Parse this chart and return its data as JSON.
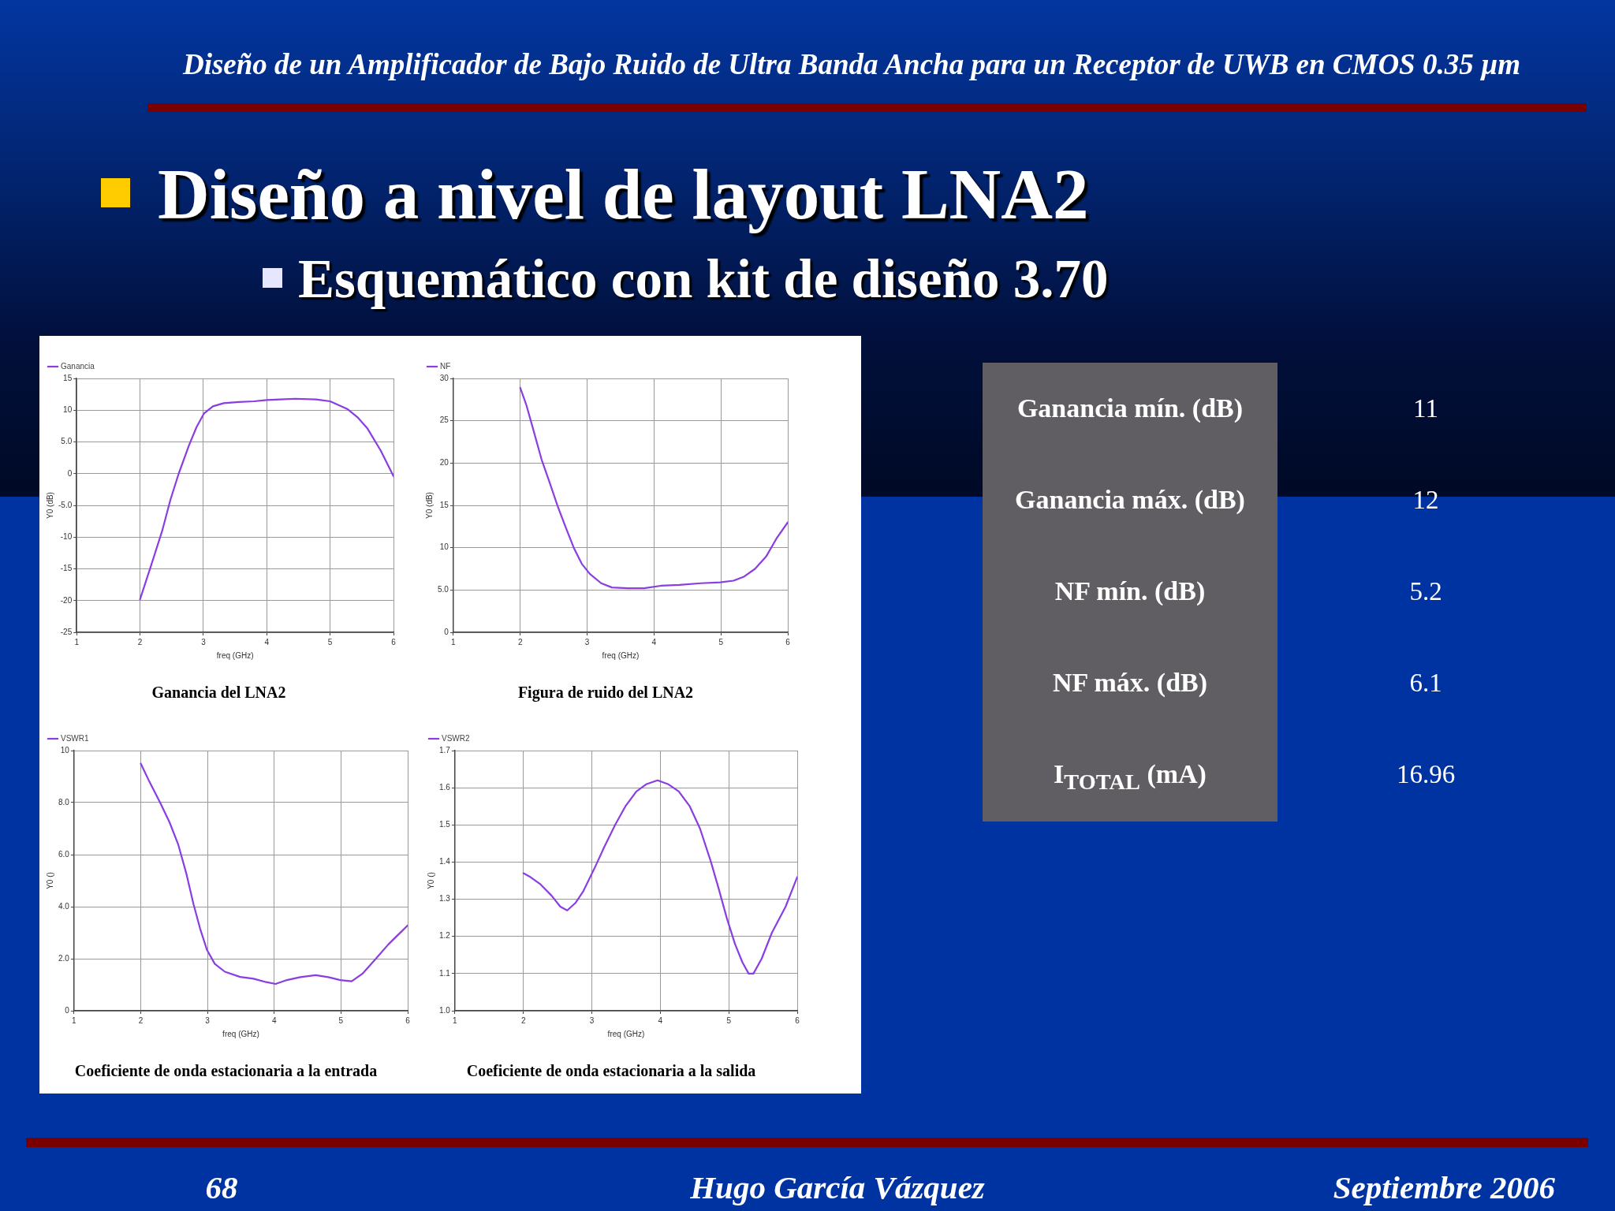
{
  "chart_data": [
    {
      "type": "other",
      "title": "Diseño a nivel de layout LNA2",
      "subtitle": "Esquemático con kit de diseño 3.70",
      "annotations": [
        "Diseño de un Amplificador de Bajo Ruido de Ultra Banda Ancha para un Receptor de UWB en CMOS 0.35 µm",
        "68",
        "Hugo García Vázquez",
        "Septiembre 2006"
      ]
    },
    {
      "type": "line",
      "title": "Ganancia del LNA2",
      "xlabel": "freq (GHz)",
      "ylabel": "Y0 (dB)",
      "x": [
        2,
        2.18,
        2.35,
        2.48,
        2.61,
        2.77,
        2.89,
        3.01,
        3.15,
        3.32,
        3.56,
        3.8,
        4,
        4.21,
        4.45,
        4.78,
        5,
        5.27,
        5.43,
        5.59,
        5.8,
        6
      ],
      "series": [
        {
          "name": "Ganancia",
          "color": "#8a3de0",
          "values": [
            -19.8,
            -14.3,
            -9,
            -4.1,
            0,
            4.4,
            7.3,
            9.5,
            10.6,
            11.1,
            11.3,
            11.4,
            11.6,
            11.7,
            11.8,
            11.7,
            11.4,
            10.2,
            8.9,
            7.1,
            3.6,
            -0.4
          ]
        }
      ],
      "xlim": [
        1,
        6
      ],
      "xticks": [
        1,
        2,
        3,
        4,
        5,
        6
      ],
      "ylim": [
        -25,
        15
      ],
      "yticks": [
        -25,
        -20,
        -15,
        -10,
        {
          "value": -5,
          "label": "-5.0"
        },
        0,
        {
          "value": 5,
          "label": "5.0"
        },
        10,
        15
      ],
      "grid": true,
      "legend": "top left",
      "marker": "none"
    },
    {
      "type": "line",
      "title": "Figura de ruido del LNA2",
      "xlabel": "freq (GHz)",
      "ylabel": "Y0 (dB)",
      "x": [
        2,
        2.09,
        2.19,
        2.32,
        2.44,
        2.56,
        2.68,
        2.8,
        2.92,
        3.04,
        3.21,
        3.37,
        3.61,
        3.85,
        4.1,
        4.38,
        4.7,
        4.99,
        5.19,
        5.35,
        5.51,
        5.68,
        5.84,
        6
      ],
      "series": [
        {
          "name": "NF",
          "color": "#8a3de0",
          "values": [
            28.9,
            26.9,
            24.1,
            20.4,
            17.7,
            14.9,
            12.4,
            10,
            8.1,
            6.9,
            5.8,
            5.3,
            5.2,
            5.2,
            5.5,
            5.6,
            5.8,
            5.9,
            6.1,
            6.6,
            7.5,
            9,
            11.2,
            13
          ]
        }
      ],
      "xlim": [
        1,
        6
      ],
      "xticks": [
        1,
        2,
        3,
        4,
        5,
        6
      ],
      "ylim": [
        0,
        30
      ],
      "yticks": [
        0,
        {
          "value": 5,
          "label": "5.0"
        },
        10,
        15,
        20,
        25,
        30
      ],
      "grid": true,
      "legend": "top left",
      "marker": "none"
    },
    {
      "type": "line",
      "title": "Coeficiente de onda estacionaria a la entrada",
      "xlabel": "freq (GHz)",
      "ylabel": "Y0 ()",
      "x": [
        2,
        2.13,
        2.29,
        2.43,
        2.56,
        2.68,
        2.79,
        2.89,
        2.99,
        3.11,
        3.26,
        3.49,
        3.69,
        3.88,
        4.02,
        4.19,
        4.39,
        4.62,
        4.81,
        4.99,
        5.16,
        5.32,
        5.51,
        5.71,
        6
      ],
      "series": [
        {
          "name": "VSWR1",
          "color": "#8a3de0",
          "values": [
            9.5,
            8.8,
            8,
            7.25,
            6.4,
            5.3,
            4.1,
            3.15,
            2.35,
            1.8,
            1.5,
            1.3,
            1.23,
            1.1,
            1.03,
            1.18,
            1.29,
            1.37,
            1.29,
            1.18,
            1.13,
            1.42,
            1.96,
            2.55,
            3.28
          ]
        }
      ],
      "xlim": [
        1,
        6
      ],
      "xticks": [
        1,
        2,
        3,
        4,
        5,
        6
      ],
      "ylim": [
        0,
        10
      ],
      "yticks": [
        0,
        {
          "value": 2,
          "label": "2.0"
        },
        {
          "value": 4,
          "label": "4.0"
        },
        {
          "value": 6,
          "label": "6.0"
        },
        {
          "value": 8,
          "label": "8.0"
        },
        10
      ],
      "grid": true,
      "legend": "top left",
      "marker": "none"
    },
    {
      "type": "line",
      "title": "Coeficiente de onda estacionaria a la salida",
      "xlabel": "freq (GHz)",
      "ylabel": "Y0 ()",
      "x": [
        2,
        2.1,
        2.25,
        2.41,
        2.54,
        2.64,
        2.76,
        2.87,
        3.03,
        3.18,
        3.34,
        3.49,
        3.65,
        3.8,
        3.96,
        4.11,
        4.27,
        4.43,
        4.58,
        4.74,
        4.85,
        4.97,
        5.09,
        5.2,
        5.29,
        5.36,
        5.48,
        5.63,
        5.83,
        6
      ],
      "series": [
        {
          "name": "VSWR2",
          "color": "#8a3de0",
          "values": [
            1.37,
            1.36,
            1.34,
            1.31,
            1.28,
            1.27,
            1.29,
            1.32,
            1.38,
            1.44,
            1.5,
            1.55,
            1.59,
            1.61,
            1.62,
            1.61,
            1.59,
            1.55,
            1.49,
            1.4,
            1.33,
            1.25,
            1.18,
            1.13,
            1.1,
            1.1,
            1.14,
            1.21,
            1.28,
            1.36
          ]
        }
      ],
      "xlim": [
        1,
        6
      ],
      "xticks": [
        1,
        2,
        3,
        4,
        5,
        6
      ],
      "ylim": [
        1,
        1.7
      ],
      "yticks": [
        {
          "value": 1,
          "label": "1.0"
        },
        1.1,
        1.2,
        1.3,
        1.4,
        1.5,
        1.6,
        1.7
      ],
      "grid": true,
      "legend": "top left",
      "marker": "none"
    },
    {
      "type": "other",
      "categories": [
        "Ganancia mín. (dB)",
        "Ganancia máx. (dB)",
        "NF mín. (dB)",
        "NF máx. (dB)",
        "I$_{TOTAL}$ (mA)"
      ],
      "values": [
        11,
        12,
        5.2,
        6.1,
        16.96
      ],
      "data_labels": true
    }
  ]
}
